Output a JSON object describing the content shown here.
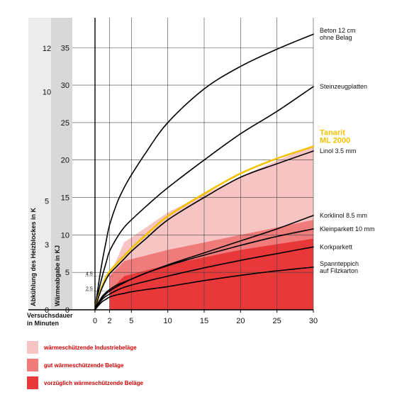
{
  "chart_data": {
    "type": "line",
    "x_title": [
      "Versuchsdauer",
      "in Minuten"
    ],
    "y_left_title": "Abkühlung des Heizblockes in K",
    "y_right_title": "Wärmeabgabe in KJ",
    "x_ticks": [
      "0",
      "2",
      "5",
      "10",
      "15",
      "20",
      "25",
      "30"
    ],
    "y_kj_ticks": [
      "0",
      "5",
      "10",
      "15",
      "20",
      "25",
      "30",
      "35"
    ],
    "y_k_ticks": [
      "0",
      "3",
      "5",
      "10",
      "12"
    ],
    "y_small_ticks": [
      "2.5",
      "4.5"
    ],
    "xlim": [
      0,
      30
    ],
    "ylim": [
      0,
      39
    ],
    "series": [
      {
        "name_lines": [
          "Beton 12 cm",
          "ohne Belag"
        ],
        "color": "#000000",
        "highlight": false,
        "x": [
          0,
          0.5,
          1,
          1.5,
          2,
          3,
          4,
          5,
          7,
          10,
          15,
          20,
          25,
          30
        ],
        "y": [
          0,
          3.5,
          6.5,
          9,
          11.3,
          14.2,
          16.3,
          18,
          21,
          25,
          29.5,
          32.5,
          34.8,
          36.8
        ]
      },
      {
        "name_lines": [
          "Steinzeugplatten"
        ],
        "color": "#000000",
        "highlight": false,
        "x": [
          0,
          0.5,
          1,
          1.5,
          2,
          3,
          4,
          5,
          7,
          10,
          15,
          20,
          25,
          30
        ],
        "y": [
          0,
          2.5,
          4.5,
          6.2,
          7.8,
          9.6,
          11,
          12,
          13.8,
          16.3,
          20,
          23.5,
          26.5,
          29.8
        ]
      },
      {
        "name_lines": [
          "Tanarit",
          "ML 2000"
        ],
        "color": "#f2c200",
        "highlight": true,
        "x": [
          0,
          0.5,
          1,
          1.5,
          2,
          3,
          4,
          5,
          7,
          10,
          15,
          20,
          25,
          30
        ],
        "y": [
          0,
          1.8,
          3.2,
          4.3,
          5.1,
          6.2,
          7.2,
          8.2,
          10,
          12.5,
          15.5,
          18.2,
          20.2,
          21.8
        ]
      },
      {
        "name_lines": [
          "Linol 3.5 mm"
        ],
        "color": "#000000",
        "highlight": false,
        "x": [
          0,
          0.5,
          1,
          1.5,
          2,
          3,
          4,
          5,
          7,
          10,
          15,
          20,
          25,
          30
        ],
        "y": [
          0,
          1.7,
          3,
          4,
          4.8,
          5.8,
          6.8,
          7.8,
          9.5,
          12,
          15,
          17.7,
          19.5,
          21.2
        ]
      },
      {
        "name_lines": [
          "Korklinol 8.5 mm"
        ],
        "color": "#000000",
        "highlight": false,
        "x": [
          0,
          0.5,
          1,
          1.5,
          2,
          3,
          4,
          5,
          7,
          10,
          15,
          20,
          25,
          30
        ],
        "y": [
          0,
          1,
          1.8,
          2.3,
          2.7,
          3.3,
          3.7,
          4.1,
          4.9,
          6,
          7.6,
          9.2,
          10.8,
          12.6
        ]
      },
      {
        "name_lines": [
          "Kleinparkett 10 mm"
        ],
        "color": "#000000",
        "highlight": false,
        "x": [
          0,
          0.5,
          1,
          1.5,
          2,
          3,
          4,
          5,
          7,
          10,
          15,
          20,
          25,
          30
        ],
        "y": [
          0,
          0.9,
          1.6,
          2.1,
          2.5,
          3.1,
          3.6,
          4.1,
          4.9,
          5.9,
          7.3,
          8.6,
          9.8,
          10.8
        ]
      },
      {
        "name_lines": [
          "Korkparkett"
        ],
        "color": "#000000",
        "highlight": false,
        "x": [
          0,
          0.5,
          1,
          1.5,
          2,
          3,
          4,
          5,
          7,
          10,
          15,
          20,
          25,
          30
        ],
        "y": [
          0,
          0.8,
          1.4,
          1.8,
          2.1,
          2.6,
          3,
          3.3,
          3.8,
          4.5,
          5.6,
          6.6,
          7.5,
          8.4
        ]
      },
      {
        "name_lines": [
          "Spannteppich",
          "auf Filzkarton"
        ],
        "color": "#000000",
        "highlight": false,
        "x": [
          0,
          0.5,
          1,
          1.5,
          2,
          3,
          4,
          5,
          7,
          10,
          15,
          20,
          25,
          30
        ],
        "y": [
          0,
          0.6,
          1.1,
          1.4,
          1.7,
          2,
          2.2,
          2.4,
          2.7,
          3.1,
          3.9,
          4.6,
          5.2,
          5.7
        ]
      }
    ],
    "bands": [
      {
        "label": "wärmeschützende Industriebeläge",
        "color": "#f7c4c4",
        "x": [
          2,
          4,
          10,
          20,
          30
        ],
        "lower": [
          2.5,
          3,
          4.2,
          6,
          7
        ],
        "upper": [
          4.5,
          9,
          13,
          17.8,
          22
        ]
      },
      {
        "label": "gut wärmeschützende Beläge",
        "color": "#f07b7b",
        "x": [
          2,
          4,
          10,
          20,
          30
        ],
        "lower": [
          2.5,
          2.5,
          3,
          4.5,
          6
        ],
        "upper": [
          4.5,
          6.5,
          8,
          10,
          12
        ]
      },
      {
        "label": "vorzüglich wärmeschützende Beläge",
        "color": "#e8383a",
        "x": [
          2,
          4,
          10,
          20,
          30
        ],
        "lower": [
          0,
          0,
          0,
          0,
          0
        ],
        "upper": [
          2.5,
          4.5,
          6,
          8,
          9.5
        ]
      }
    ],
    "legend_position": "bottom-left",
    "grid": true
  }
}
